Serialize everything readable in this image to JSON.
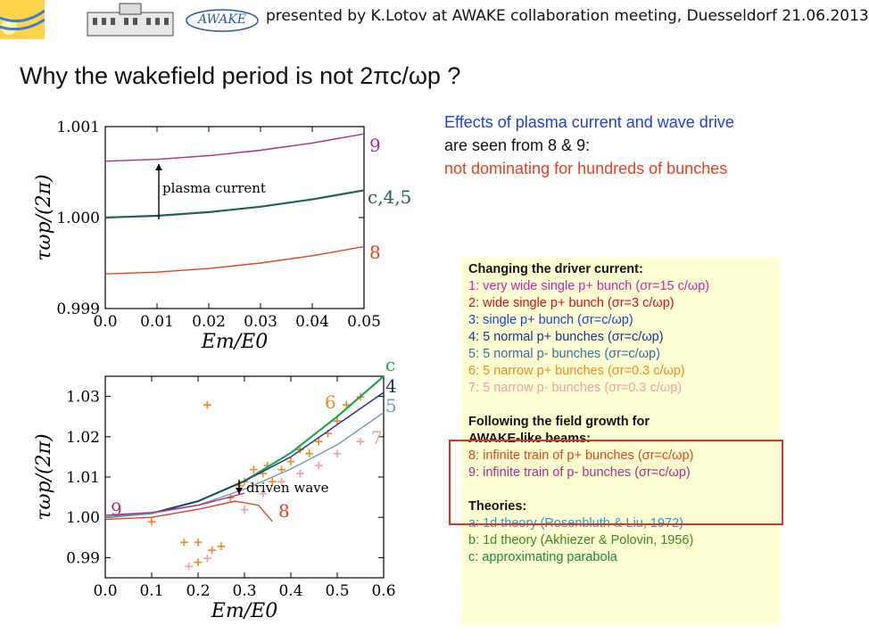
{
  "header": {
    "presented_by": "presented by K.Lotov at AWAKE collaboration meeting, Duesseldorf 21.06.2013",
    "logo_awake": "AWAKE"
  },
  "title": "Why the wakefield period is not 2πc/ωp ?",
  "effects": {
    "line1": "Effects of plasma current and wave drive",
    "line2": "are seen from 8 & 9:",
    "line3": "not dominating for hundreds of bunches"
  },
  "legend": {
    "heading_driver": "Changing the driver current:",
    "items_driver": [
      {
        "text": "1: very wide single p+ bunch (σr=15 c/ωp)",
        "color": "#d81fb0"
      },
      {
        "text": "2: wide single p+ bunch (σr=3 c/ωp)",
        "color": "#d1101f"
      },
      {
        "text": "3: single p+ bunch (σr=c/ωp)",
        "color": "#1f3fd6"
      },
      {
        "text": "4: 5 normal p+ bunches (σr=c/ωp)",
        "color": "#1a2f8a"
      },
      {
        "text": "5: 5 normal p- bunches (σr=c/ωp)",
        "color": "#2f6fa8"
      },
      {
        "text": "6: 5 narrow p+ bunches (σr=0.3 c/ωp)",
        "color": "#f08a1e"
      },
      {
        "text": "7: 5 narrow p- bunches (σr=0.3 c/ωp)",
        "color": "#f0a0a8"
      }
    ],
    "heading_growth_1": "Following the field growth for",
    "heading_growth_2": "AWAKE-like beams:",
    "items_growth": [
      {
        "text": "8: infinite train of p+ bunches (σr=c/ωp)",
        "color": "#e5411e"
      },
      {
        "text": "9: infinite train of p- bunches (σr=c/ωp)",
        "color": "#b02a8a"
      }
    ],
    "heading_theories": "Theories:",
    "items_theories": [
      {
        "text": "a: 1d theory (Rosenbluth & Liu, 1972)",
        "color": "#1f9ad6"
      },
      {
        "text": "b: 1d theory (Akhiezer & Polovin, 1956)",
        "color": "#3a8a1e"
      },
      {
        "text": "c: approximating parabola",
        "color": "#1a8a3a"
      }
    ]
  },
  "chart_data": [
    {
      "type": "line",
      "ylabel": "τωp/(2π)",
      "xlabel": "Em/E0",
      "xlim": [
        0,
        0.05
      ],
      "ylim": [
        0.999,
        1.001
      ],
      "xticks": [
        "0.0",
        "0.01",
        "0.02",
        "0.03",
        "0.04",
        "0.05"
      ],
      "yticks": [
        "0.999",
        "1.000",
        "1.001"
      ],
      "series": [
        {
          "name": "9",
          "color": "#b02a8a",
          "x": [
            0,
            0.01,
            0.02,
            0.03,
            0.04,
            0.05
          ],
          "y": [
            1.00062,
            1.00064,
            1.00068,
            1.00074,
            1.00082,
            1.00092
          ]
        },
        {
          "name": "c,4,5",
          "color": "#1f5f5a",
          "x": [
            0,
            0.01,
            0.02,
            0.03,
            0.04,
            0.05
          ],
          "y": [
            1.0,
            1.00002,
            1.00006,
            1.00012,
            1.0002,
            1.0003
          ]
        },
        {
          "name": "8",
          "color": "#e5411e",
          "x": [
            0,
            0.01,
            0.02,
            0.03,
            0.04,
            0.05
          ],
          "y": [
            0.99938,
            0.9994,
            0.99944,
            0.9995,
            0.99958,
            0.99968
          ]
        }
      ],
      "annotation": "plasma current"
    },
    {
      "type": "line",
      "ylabel": "τωp/(2π)",
      "xlabel": "Em/E0",
      "xlim": [
        0,
        0.6
      ],
      "ylim": [
        0.985,
        1.035
      ],
      "xticks": [
        "0.0",
        "0.1",
        "0.2",
        "0.3",
        "0.4",
        "0.5",
        "0.6"
      ],
      "yticks": [
        "0.99",
        "1.00",
        "1.01",
        "1.02",
        "1.03"
      ],
      "series": [
        {
          "name": "c",
          "color": "#1aa84a",
          "x": [
            0,
            0.1,
            0.2,
            0.3,
            0.4,
            0.5,
            0.6
          ],
          "y": [
            1.0,
            1.001,
            1.004,
            1.009,
            1.016,
            1.025,
            1.035
          ]
        },
        {
          "name": "4",
          "color": "#1a2f8a",
          "x": [
            0,
            0.1,
            0.2,
            0.3,
            0.4,
            0.5,
            0.6
          ],
          "y": [
            1.0,
            1.001,
            1.004,
            1.009,
            1.015,
            1.023,
            1.031
          ]
        },
        {
          "name": "5",
          "color": "#6f9ab8",
          "x": [
            0,
            0.1,
            0.2,
            0.3,
            0.4,
            0.5,
            0.6
          ],
          "y": [
            1.0,
            1.001,
            1.003,
            1.007,
            1.012,
            1.018,
            1.026
          ]
        },
        {
          "name": "9",
          "color": "#b02a8a",
          "x": [
            0,
            0.1,
            0.2,
            0.25,
            0.3
          ],
          "y": [
            1.0005,
            1.0012,
            1.003,
            1.0045,
            1.006
          ]
        },
        {
          "name": "8",
          "color": "#e5411e",
          "x": [
            0,
            0.1,
            0.2,
            0.28,
            0.33,
            0.36
          ],
          "y": [
            0.9995,
            1.0,
            1.002,
            1.004,
            1.003,
            0.999
          ]
        }
      ],
      "markers": [
        {
          "name": "6",
          "color": "#f08a1e",
          "points": [
            [
              0.22,
              1.028
            ],
            [
              0.1,
              0.999
            ],
            [
              0.17,
              0.994
            ],
            [
              0.2,
              0.994
            ],
            [
              0.2,
              0.989
            ],
            [
              0.23,
              0.992
            ],
            [
              0.25,
              0.993
            ],
            [
              0.27,
              1.005
            ],
            [
              0.29,
              1.008
            ],
            [
              0.3,
              1.009
            ],
            [
              0.32,
              1.012
            ],
            [
              0.34,
              1.011
            ],
            [
              0.35,
              1.013
            ],
            [
              0.36,
              1.009
            ],
            [
              0.38,
              1.012
            ],
            [
              0.4,
              1.014
            ],
            [
              0.42,
              1.017
            ],
            [
              0.44,
              1.016
            ],
            [
              0.46,
              1.019
            ],
            [
              0.48,
              1.021
            ],
            [
              0.5,
              1.024
            ],
            [
              0.52,
              1.028
            ],
            [
              0.55,
              1.03
            ]
          ]
        },
        {
          "name": "7",
          "color": "#f0a0a8",
          "points": [
            [
              0.18,
              0.988
            ],
            [
              0.22,
              0.99
            ],
            [
              0.3,
              1.002
            ],
            [
              0.34,
              1.006
            ],
            [
              0.38,
              1.009
            ],
            [
              0.42,
              1.011
            ],
            [
              0.46,
              1.013
            ],
            [
              0.5,
              1.016
            ],
            [
              0.55,
              1.019
            ]
          ]
        }
      ],
      "annotation": "driven wave"
    }
  ]
}
